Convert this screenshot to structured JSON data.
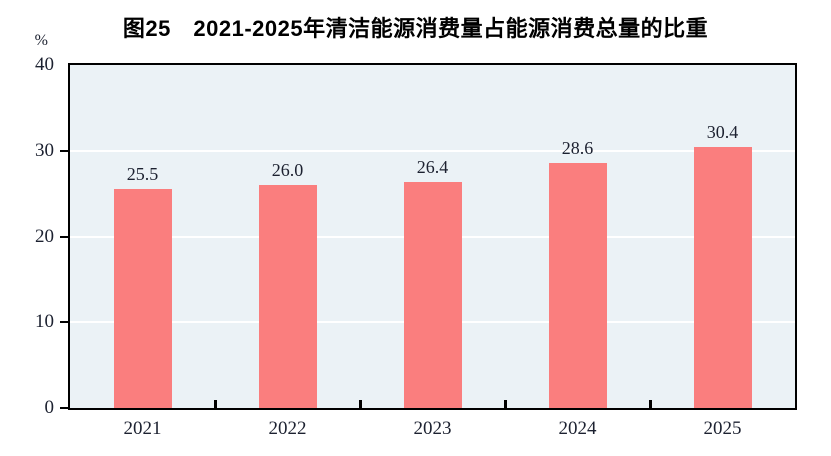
{
  "chart_data": {
    "type": "bar",
    "title": "图25　2021-2025年清洁能源消费量占能源消费总量的比重",
    "ylabel": "%",
    "xlabel": "",
    "categories": [
      "2021",
      "2022",
      "2023",
      "2024",
      "2025"
    ],
    "values": [
      25.5,
      26.0,
      26.4,
      28.6,
      30.4
    ],
    "value_labels": [
      "25.5",
      "26.0",
      "26.4",
      "28.6",
      "30.4"
    ],
    "ylim": [
      0,
      40
    ],
    "yticks": [
      0,
      10,
      20,
      30,
      40
    ],
    "grid": true,
    "legend_position": "none",
    "colors": {
      "bar": "#fa7e7e",
      "plot_background": "#ebf2f6",
      "gridline": "#ffffff",
      "axis": "#000000",
      "tick_text": "#1c2130",
      "title_text": "#000000"
    }
  }
}
